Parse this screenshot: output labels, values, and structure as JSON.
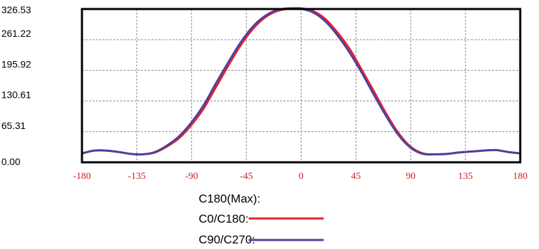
{
  "chart_data": {
    "type": "line",
    "x_ticks": [
      "-180",
      "-135",
      "-90",
      "-45",
      "0",
      "45",
      "90",
      "135",
      "180"
    ],
    "x_tick_values": [
      -180,
      -135,
      -90,
      -45,
      0,
      45,
      90,
      135,
      180
    ],
    "y_ticks": [
      "0.00",
      "65.31",
      "130.61",
      "195.92",
      "261.22",
      "326.53"
    ],
    "y_tick_values": [
      0,
      65.31,
      130.61,
      195.92,
      261.22,
      326.53
    ],
    "xlim": [
      -180,
      180
    ],
    "ylim": [
      0,
      326.53
    ],
    "grid": true,
    "x_tick_color": "#cc2222",
    "legend": {
      "title": "C180(Max):",
      "placement": "bottom-center"
    },
    "series": [
      {
        "name": "C0/C180:",
        "color": "#e8202a",
        "x": [
          -180,
          -170,
          -160,
          -150,
          -140,
          -130,
          -120,
          -110,
          -100,
          -90,
          -80,
          -70,
          -60,
          -50,
          -40,
          -30,
          -20,
          -10,
          0,
          10,
          20,
          30,
          40,
          50,
          60,
          70,
          80,
          90,
          100,
          110,
          120,
          130,
          140,
          150,
          160,
          170,
          180
        ],
        "y": [
          19,
          25,
          25,
          22,
          18,
          17,
          21,
          34,
          52,
          80,
          115,
          160,
          205,
          248,
          283,
          308,
          322,
          327,
          328,
          322,
          305,
          276,
          241,
          196,
          150,
          103,
          62,
          33,
          19,
          17,
          18,
          21,
          23,
          25,
          26,
          22,
          19
        ]
      },
      {
        "name": "C90/C270:",
        "color": "#5040a0",
        "x": [
          -180,
          -170,
          -160,
          -150,
          -140,
          -130,
          -120,
          -110,
          -100,
          -90,
          -80,
          -70,
          -60,
          -50,
          -40,
          -30,
          -20,
          -10,
          0,
          10,
          20,
          30,
          40,
          50,
          60,
          70,
          80,
          90,
          100,
          110,
          120,
          130,
          140,
          150,
          160,
          170,
          180
        ],
        "y": [
          19,
          25,
          25,
          22,
          18,
          17,
          22,
          36,
          56,
          85,
          122,
          168,
          212,
          254,
          288,
          311,
          324,
          328,
          327,
          319,
          300,
          270,
          233,
          190,
          143,
          98,
          58,
          31,
          18,
          17,
          18,
          21,
          23,
          25,
          26,
          22,
          19
        ]
      }
    ]
  }
}
